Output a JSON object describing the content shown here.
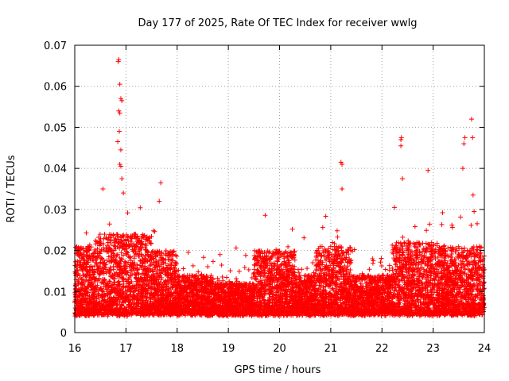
{
  "chart_data": {
    "type": "scatter",
    "title": "Day 177 of 2025, Rate Of TEC Index for receiver wwlg",
    "xlabel": "GPS time / hours",
    "ylabel": "ROTI / TECUs",
    "xlim": [
      16,
      24
    ],
    "ylim": [
      0,
      0.07
    ],
    "x_ticks": [
      "16",
      "17",
      "18",
      "19",
      "20",
      "21",
      "22",
      "23",
      "24"
    ],
    "y_ticks": [
      "0",
      "0.01",
      "0.02",
      "0.03",
      "0.04",
      "0.05",
      "0.06",
      "0.07"
    ],
    "grid": true,
    "marker": "+",
    "color": "#ff0000",
    "point_count_approx": 9000,
    "series": [
      {
        "name": "ROTI",
        "notable_points": [
          {
            "x": 16.85,
            "y": 0.066
          },
          {
            "x": 16.86,
            "y": 0.0665
          },
          {
            "x": 16.88,
            "y": 0.0605
          },
          {
            "x": 16.9,
            "y": 0.057
          },
          {
            "x": 16.92,
            "y": 0.0565
          },
          {
            "x": 16.86,
            "y": 0.054
          },
          {
            "x": 16.88,
            "y": 0.0535
          },
          {
            "x": 16.84,
            "y": 0.0465
          },
          {
            "x": 16.87,
            "y": 0.049
          },
          {
            "x": 16.9,
            "y": 0.0445
          },
          {
            "x": 16.88,
            "y": 0.041
          },
          {
            "x": 16.9,
            "y": 0.0405
          },
          {
            "x": 16.92,
            "y": 0.0375
          },
          {
            "x": 16.95,
            "y": 0.034
          },
          {
            "x": 16.55,
            "y": 0.035
          },
          {
            "x": 17.68,
            "y": 0.0365
          },
          {
            "x": 17.65,
            "y": 0.032
          },
          {
            "x": 21.2,
            "y": 0.0415
          },
          {
            "x": 21.22,
            "y": 0.041
          },
          {
            "x": 21.22,
            "y": 0.035
          },
          {
            "x": 22.37,
            "y": 0.047
          },
          {
            "x": 22.38,
            "y": 0.0475
          },
          {
            "x": 22.37,
            "y": 0.0455
          },
          {
            "x": 22.4,
            "y": 0.0375
          },
          {
            "x": 22.9,
            "y": 0.0395
          },
          {
            "x": 23.62,
            "y": 0.0475
          },
          {
            "x": 23.6,
            "y": 0.046
          },
          {
            "x": 23.58,
            "y": 0.04
          },
          {
            "x": 23.75,
            "y": 0.052
          },
          {
            "x": 23.77,
            "y": 0.0475
          },
          {
            "x": 23.78,
            "y": 0.0335
          },
          {
            "x": 23.8,
            "y": 0.0295
          }
        ]
      }
    ]
  }
}
